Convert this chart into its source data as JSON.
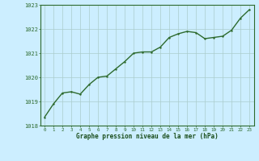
{
  "x": [
    0,
    1,
    2,
    3,
    4,
    5,
    6,
    7,
    8,
    9,
    10,
    11,
    12,
    13,
    14,
    15,
    16,
    17,
    18,
    19,
    20,
    21,
    22,
    23
  ],
  "y": [
    1018.35,
    1018.9,
    1019.35,
    1019.4,
    1019.3,
    1019.7,
    1020.0,
    1020.05,
    1020.35,
    1020.65,
    1021.0,
    1021.05,
    1021.05,
    1021.25,
    1021.65,
    1021.8,
    1021.9,
    1021.85,
    1021.6,
    1021.65,
    1021.7,
    1021.95,
    1022.45,
    1022.8
  ],
  "ylim": [
    1018,
    1023
  ],
  "yticks": [
    1018,
    1019,
    1020,
    1021,
    1022,
    1023
  ],
  "xticks": [
    0,
    1,
    2,
    3,
    4,
    5,
    6,
    7,
    8,
    9,
    10,
    11,
    12,
    13,
    14,
    15,
    16,
    17,
    18,
    19,
    20,
    21,
    22,
    23
  ],
  "line_color": "#2d6a2d",
  "marker_color": "#2d6a2d",
  "bg_color": "#cceeff",
  "grid_color": "#aacccc",
  "xlabel": "Graphe pression niveau de la mer (hPa)",
  "xlabel_color": "#1a4d1a",
  "tick_color": "#2d6a2d",
  "marker_size": 2.0,
  "line_width": 1.0,
  "xlim": [
    -0.5,
    23.5
  ]
}
